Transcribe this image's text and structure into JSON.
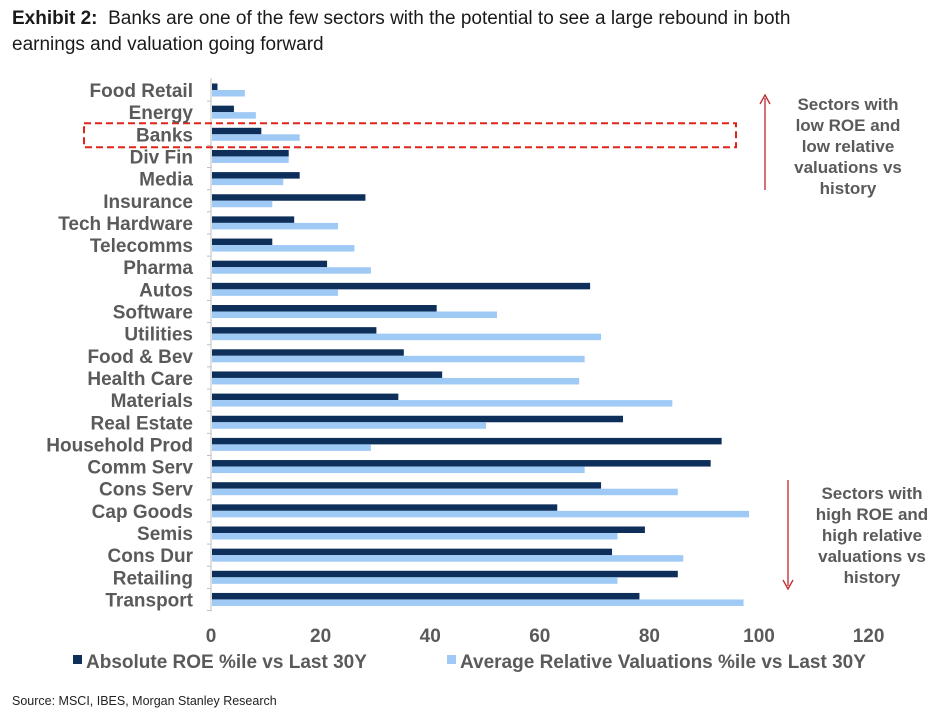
{
  "header": {
    "exhibit": "Exhibit 2:",
    "title_line1": "Banks are one of the few sectors with the potential to see a large rebound in both",
    "title_line2": "earnings and valuation going forward"
  },
  "source": "Source: MSCI, IBES, Morgan Stanley Research",
  "annotations": {
    "top_line1": "Sectors with",
    "top_line2": "low ROE and",
    "top_line3": "low relative",
    "top_line4": "valuations vs",
    "top_line5": "history",
    "bottom_line1": "Sectors with",
    "bottom_line2": "high ROE and",
    "bottom_line3": "high relative",
    "bottom_line4": "valuations vs",
    "bottom_line5": "history"
  },
  "colors": {
    "series1": "#0d2f5a",
    "series2": "#9fcaf5",
    "highlight": "#e2231a",
    "arrow": "#c0272d"
  },
  "chart_data": {
    "type": "bar",
    "orientation": "horizontal",
    "title": "Banks are one of the few sectors with the potential to see a large rebound in both earnings and valuation going forward",
    "categories": [
      "Food Retail",
      "Energy",
      "Banks",
      "Div Fin",
      "Media",
      "Insurance",
      "Tech Hardware",
      "Telecomms",
      "Pharma",
      "Autos",
      "Software",
      "Utilities",
      "Food & Bev",
      "Health Care",
      "Materials",
      "Real Estate",
      "Household Prod",
      "Comm Serv",
      "Cons Serv",
      "Cap Goods",
      "Semis",
      "Cons Dur",
      "Retailing",
      "Transport"
    ],
    "series": [
      {
        "name": "Absolute ROE %ile vs Last 30Y",
        "values": [
          1,
          4,
          9,
          14,
          16,
          28,
          15,
          11,
          21,
          69,
          41,
          30,
          35,
          42,
          34,
          75,
          93,
          91,
          71,
          63,
          79,
          73,
          85,
          78
        ]
      },
      {
        "name": "Average Relative Valuations %ile vs Last 30Y",
        "values": [
          6,
          8,
          16,
          14,
          13,
          11,
          23,
          26,
          29,
          23,
          52,
          71,
          68,
          67,
          84,
          50,
          29,
          68,
          85,
          98,
          74,
          86,
          74,
          97
        ]
      }
    ],
    "highlighted_category": "Banks",
    "xlim": [
      0,
      120
    ],
    "xticks": [
      0,
      20,
      40,
      60,
      80,
      100,
      120
    ],
    "xlabel": "",
    "ylabel": "",
    "legend_position": "bottom"
  }
}
